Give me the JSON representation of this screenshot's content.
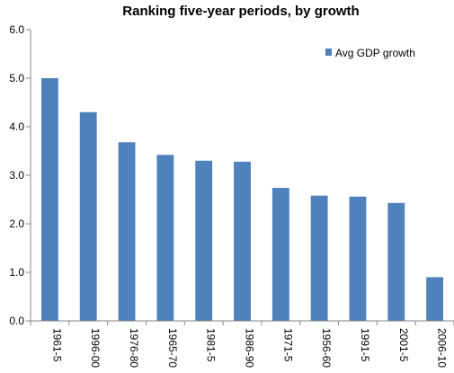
{
  "chart_data": {
    "type": "bar",
    "title": "Ranking five-year periods, by growth",
    "xlabel": "",
    "ylabel": "",
    "categories": [
      "1961-5",
      "1996-00",
      "1976-80",
      "1965-70",
      "1981-5",
      "1986-90",
      "1971-5",
      "1956-60",
      "1991-5",
      "2001-5",
      "2006-10"
    ],
    "series": [
      {
        "name": "Avg GDP growth",
        "values": [
          5.0,
          4.3,
          3.68,
          3.42,
          3.3,
          3.28,
          2.74,
          2.58,
          2.56,
          2.43,
          0.9
        ]
      }
    ],
    "ylim": [
      0,
      6
    ],
    "yticks": [
      "0.0",
      "1.0",
      "2.0",
      "3.0",
      "4.0",
      "5.0",
      "6.0"
    ],
    "grid": false,
    "legend_position": "top-right",
    "colors": {
      "bar": "#4f81bd",
      "axis": "#868686"
    }
  }
}
